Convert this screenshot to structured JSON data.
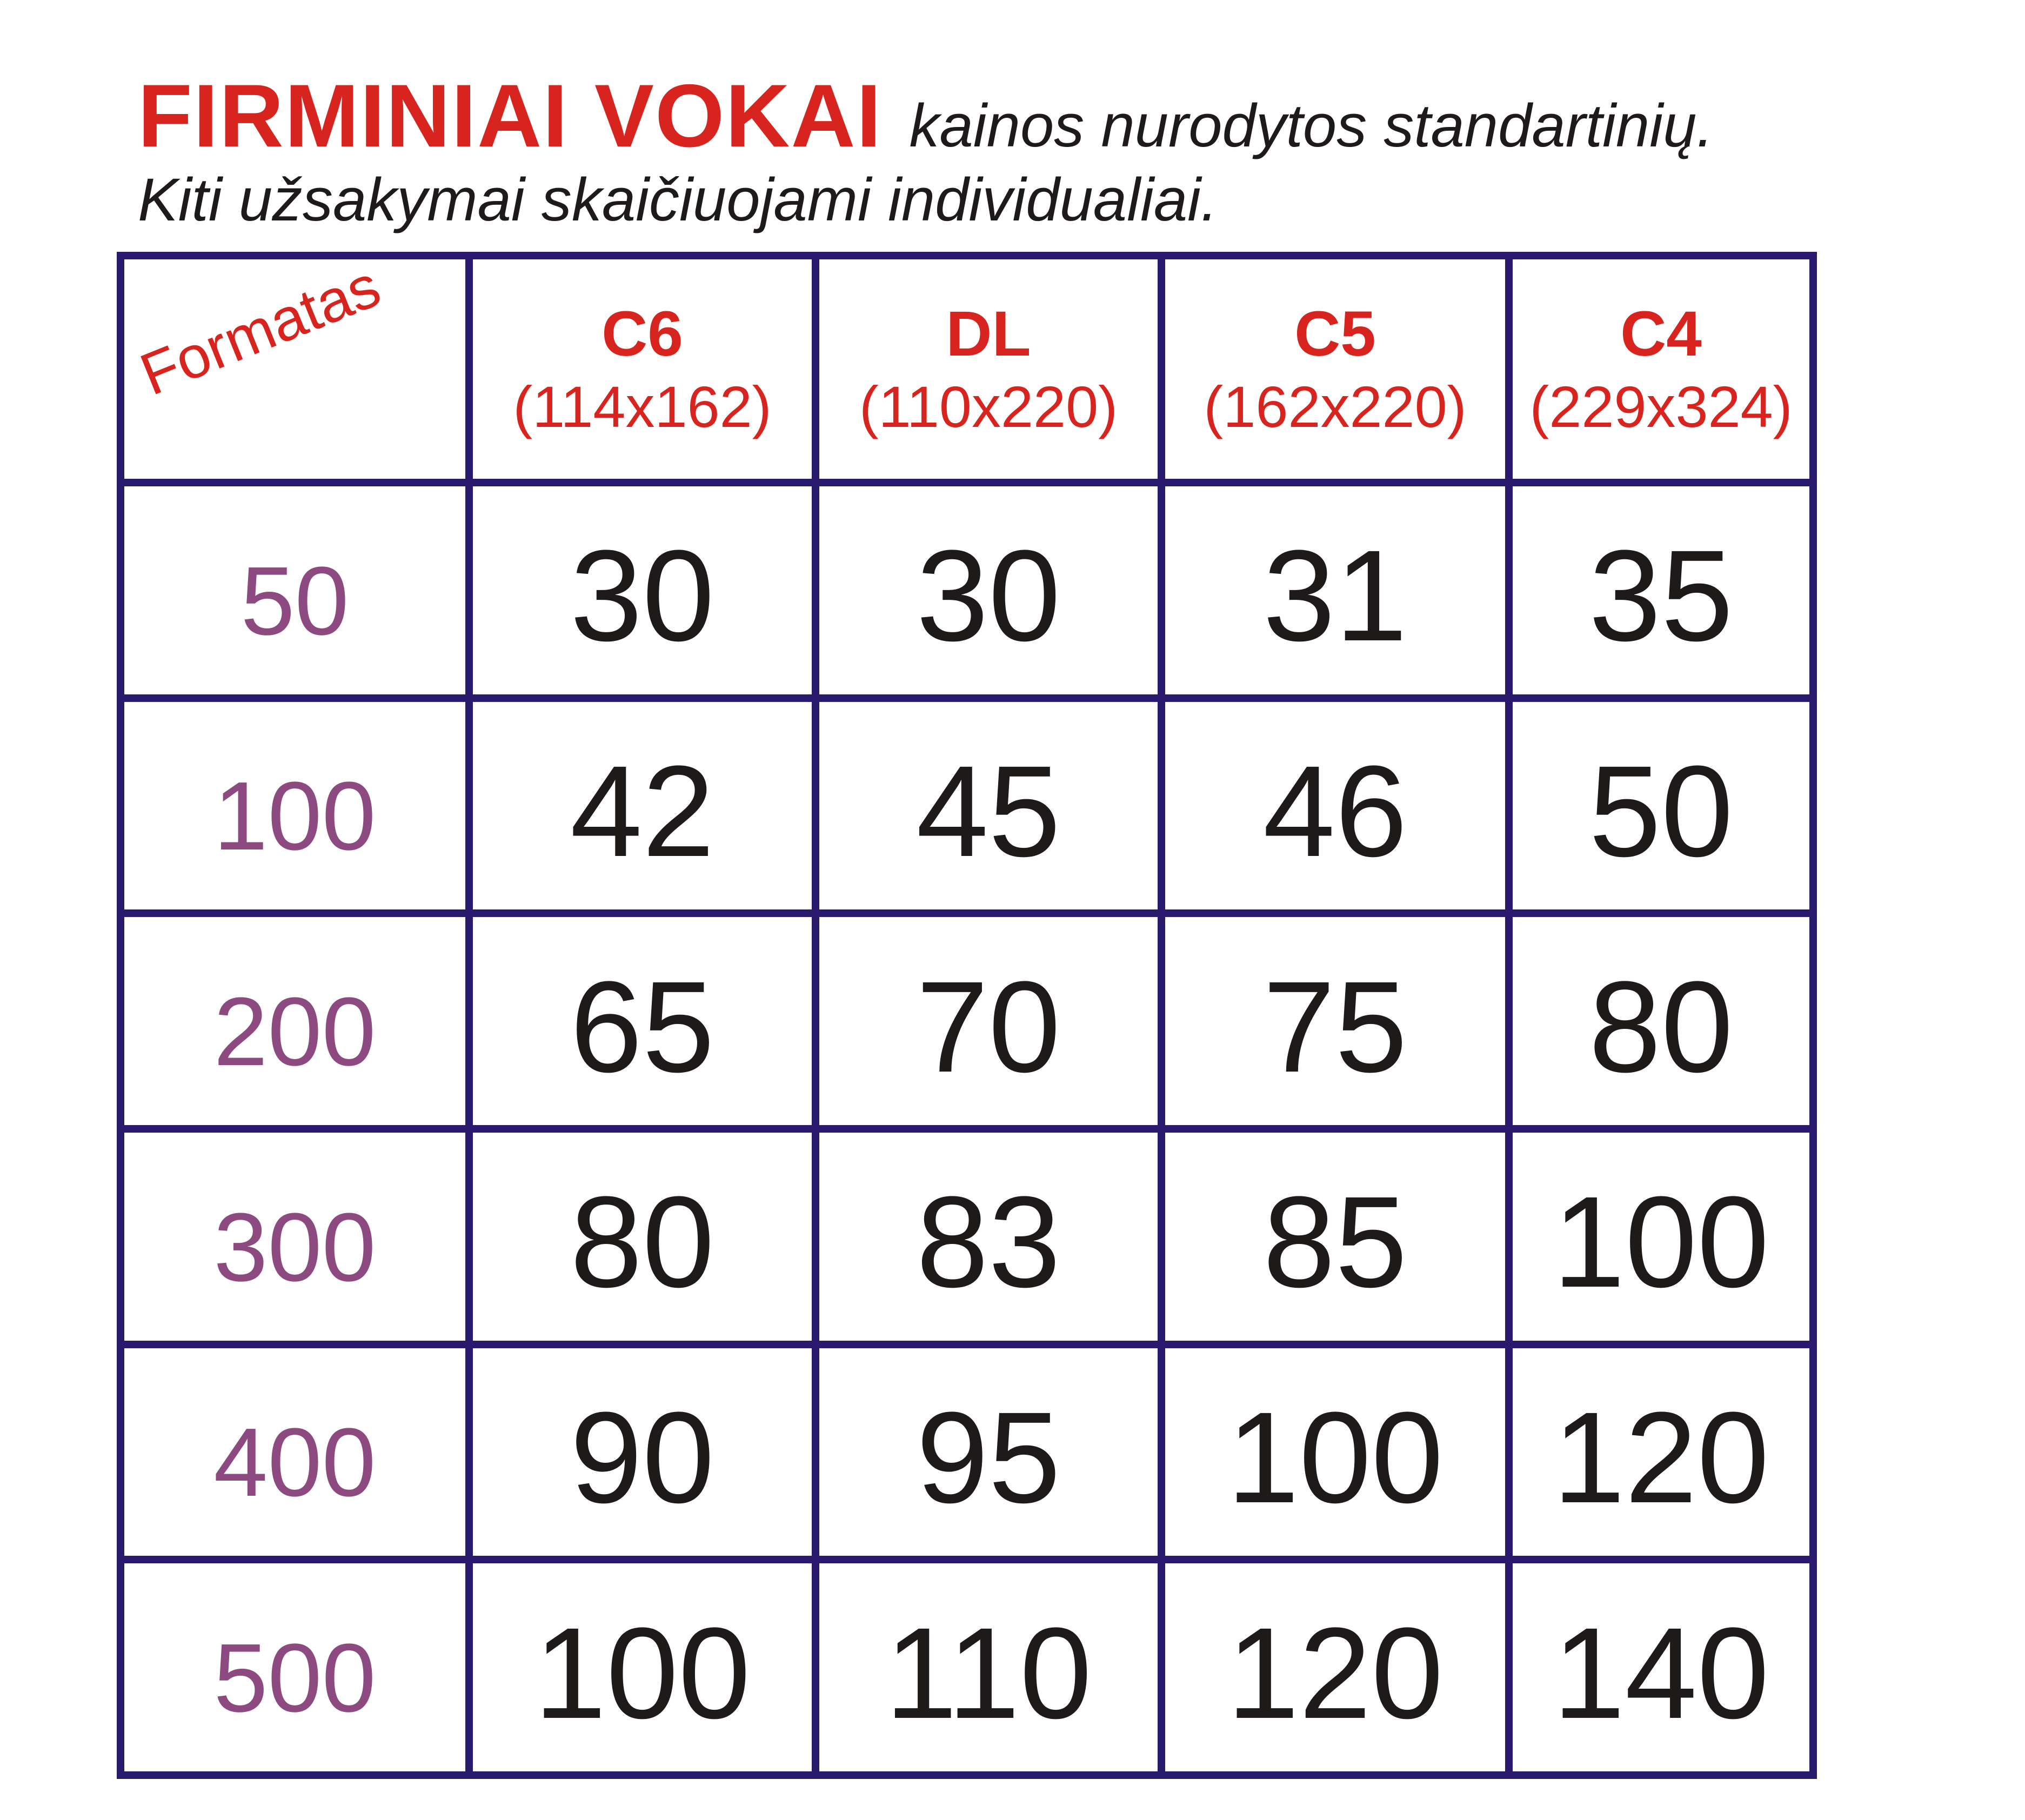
{
  "header": {
    "title": "FIRMINIAI VOKAI",
    "note": "kainos nurodytos standartinių.",
    "subtitle": "Kiti užsakymai skaičiuojami individualiai."
  },
  "table": {
    "corner_label": "Formatas",
    "columns": [
      {
        "code": "C6",
        "size": "(114x162)"
      },
      {
        "code": "DL",
        "size": "(110x220)"
      },
      {
        "code": "C5",
        "size": "(162x220)"
      },
      {
        "code": "C4",
        "size": "(229x324)"
      }
    ],
    "rows": [
      {
        "qty": "50",
        "prices": [
          "30",
          "30",
          "31",
          "35"
        ]
      },
      {
        "qty": "100",
        "prices": [
          "42",
          "45",
          "46",
          "50"
        ]
      },
      {
        "qty": "200",
        "prices": [
          "65",
          "70",
          "75",
          "80"
        ]
      },
      {
        "qty": "300",
        "prices": [
          "80",
          "83",
          "85",
          "100"
        ]
      },
      {
        "qty": "400",
        "prices": [
          "90",
          "95",
          "100",
          "120"
        ]
      },
      {
        "qty": "500",
        "prices": [
          "100",
          "110",
          "120",
          "140"
        ]
      }
    ]
  },
  "colors": {
    "title": "#d8241f",
    "border": "#2a1a6e",
    "quantity": "#8c4a80",
    "price": "#1e1a1a"
  }
}
